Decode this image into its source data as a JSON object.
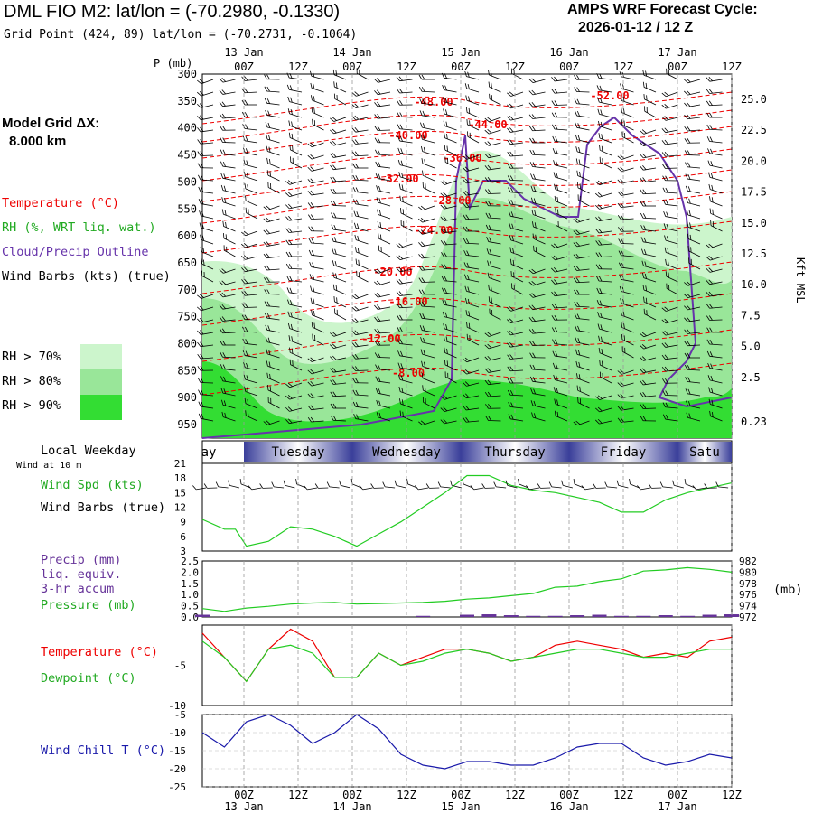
{
  "header": {
    "title": "DML FIO M2:  lat/lon = (-70.2980, -0.1330)",
    "grid_point": "Grid Point (424, 89) lat/lon = (-70.2731, -0.1064)",
    "cycle_line1": "AMPS WRF Forecast Cycle:",
    "cycle_line2": "2026-01-12 / 12  Z"
  },
  "model_grid": {
    "label": "Model Grid ΔX:",
    "value": "8.000 km"
  },
  "time_axis": {
    "tick_labels": [
      "00Z",
      "12Z",
      "00Z",
      "12Z",
      "00Z",
      "12Z",
      "00Z",
      "12Z",
      "00Z",
      "12Z"
    ],
    "date_labels": [
      "13 Jan",
      "14 Jan",
      "15 Jan",
      "16 Jan",
      "17 Jan"
    ]
  },
  "colors": {
    "temperature": "#ee0000",
    "rh": "#22bb22",
    "cloud": "#6633aa",
    "wind": "#000000",
    "rh70": "#ccf5cc",
    "rh80": "#99e699",
    "rh90": "#33dd33",
    "dewpoint": "#22cc22",
    "windchill": "#1a1aaa",
    "precip": "#663399"
  },
  "legend": {
    "temperature": "Temperature (°C)",
    "rh": "RH (%, WRT liq. wat.)",
    "cloud": "Cloud/Precip Outline",
    "wind": "Wind Barbs (kts) (true)",
    "rh70": "RH > 70%",
    "rh80": "RH > 80%",
    "rh90": "RH > 90%"
  },
  "weekday_panel": {
    "label": "Local Weekday",
    "days": [
      "Monday",
      "Tuesday",
      "Wednesday",
      "Thursday",
      "Friday",
      "Saturday"
    ],
    "shown_first": "ay",
    "shown_last": "Satu"
  },
  "wind_panel": {
    "note": "Wind at 10 m",
    "label1": "Wind Spd (kts)",
    "label2": "Wind Barbs (true)"
  },
  "precip_panel": {
    "label1": "Precip (mm)",
    "label2": "liq. equiv.",
    "label3": "3-hr accum",
    "label4": "Pressure (mb)",
    "right_unit": "(mb)"
  },
  "temp_panel": {
    "label1": "Temperature (°C)",
    "label2": "Dewpoint (°C)"
  },
  "windchill_panel": {
    "label": "Wind Chill T (°C)"
  },
  "chart_data": [
    {
      "type": "time-height cross-section",
      "title": "DML FIO M2",
      "ylabel": "P (mb)",
      "y2label": "Kft MSL",
      "x_hours": [
        0,
        144
      ],
      "pressure_ticks": [
        300,
        350,
        400,
        450,
        500,
        550,
        600,
        650,
        700,
        750,
        800,
        850,
        900,
        950
      ],
      "height_ticks": [
        "25.0",
        "22.5",
        "20.0",
        "17.5",
        "15.0",
        "12.5",
        "10.0",
        "7.5",
        "5.0",
        "2.5",
        "0.23"
      ],
      "temperature_contour_labels": [
        "-48.00",
        "-52.00",
        "-44.00",
        "-40.00",
        "-36.00",
        "-32.00",
        "-28.00",
        "-24.00",
        "-20.00",
        "-16.00",
        "-12.00",
        "-8.00"
      ]
    },
    {
      "type": "line",
      "title": "Wind Spd (kts)",
      "ylim": [
        3,
        21
      ],
      "yticks": [
        3,
        6,
        9,
        12,
        15,
        18,
        21
      ],
      "x_hours": [
        0,
        6,
        9,
        12,
        18,
        24,
        30,
        36,
        42,
        48,
        54,
        60,
        66,
        72,
        78,
        84,
        90,
        96,
        102,
        108,
        114,
        120,
        126,
        132,
        138,
        144
      ],
      "values": [
        9.5,
        7.5,
        7.5,
        4,
        5,
        8,
        7.5,
        6,
        4,
        6.5,
        9,
        12,
        15,
        18.5,
        18.5,
        16.5,
        15.5,
        15,
        14,
        13,
        11,
        11,
        13.5,
        15,
        16,
        17
      ]
    },
    {
      "type": "line+bar",
      "title": "Precip / Pressure",
      "precip_ylim": [
        0,
        2.5
      ],
      "precip_yticks": [
        "0.0",
        "0.5",
        "1.0",
        "1.5",
        "2.0",
        "2.5"
      ],
      "pressure_ylim": [
        972,
        982
      ],
      "pressure_yticks": [
        972,
        974,
        976,
        978,
        980,
        982
      ],
      "x_hours": [
        0,
        6,
        12,
        18,
        24,
        30,
        36,
        42,
        48,
        54,
        60,
        66,
        72,
        78,
        84,
        90,
        96,
        102,
        108,
        114,
        120,
        126,
        132,
        138,
        144
      ],
      "pressure": [
        973.5,
        973.0,
        973.6,
        973.9,
        974.3,
        974.5,
        974.6,
        974.3,
        974.4,
        974.5,
        974.6,
        974.8,
        975.2,
        975.4,
        975.8,
        976.2,
        977.3,
        977.5,
        978.3,
        978.8,
        980.2,
        980.4,
        980.8,
        980.5,
        980.0
      ],
      "precip": [
        0.1,
        0,
        0,
        0,
        0,
        0,
        0,
        0,
        0,
        0,
        0.05,
        0,
        0.1,
        0.12,
        0.08,
        0.05,
        0.05,
        0.08,
        0.1,
        0.05,
        0.05,
        0.08,
        0.05,
        0.1,
        0.12
      ]
    },
    {
      "type": "line",
      "title": "Temperature / Dewpoint (°C)",
      "ylim": [
        -10,
        0
      ],
      "yticks": [
        -5,
        -10
      ],
      "x_hours": [
        0,
        6,
        12,
        18,
        24,
        30,
        36,
        42,
        48,
        54,
        60,
        66,
        72,
        78,
        84,
        90,
        96,
        102,
        108,
        114,
        120,
        126,
        132,
        138,
        144
      ],
      "series": [
        {
          "name": "Temperature",
          "values": [
            -1,
            -4,
            -7,
            -3,
            -0.5,
            -2,
            -6.5,
            -6.5,
            -3.5,
            -5,
            -4,
            -3,
            -3,
            -3.5,
            -4.5,
            -4,
            -2.5,
            -2,
            -2.5,
            -3,
            -4,
            -3.5,
            -4,
            -2,
            -1.5
          ]
        },
        {
          "name": "Dewpoint",
          "values": [
            -2,
            -4,
            -7,
            -3,
            -2.5,
            -3.5,
            -6.5,
            -6.5,
            -3.5,
            -5,
            -4.5,
            -3.5,
            -3,
            -3.5,
            -4.5,
            -4,
            -3.5,
            -3,
            -3,
            -3.5,
            -4,
            -4,
            -3.5,
            -3,
            -3
          ]
        }
      ]
    },
    {
      "type": "line",
      "title": "Wind Chill T (°C)",
      "ylim": [
        -25,
        -5
      ],
      "yticks": [
        -5,
        -10,
        -15,
        -20,
        -25
      ],
      "x_hours": [
        0,
        6,
        12,
        18,
        24,
        30,
        36,
        42,
        48,
        54,
        60,
        66,
        72,
        78,
        84,
        90,
        96,
        102,
        108,
        114,
        120,
        126,
        132,
        138,
        144
      ],
      "values": [
        -10,
        -14,
        -7,
        -5,
        -8,
        -13,
        -10,
        -5,
        -9,
        -16,
        -19,
        -20,
        -18,
        -18,
        -19,
        -19,
        -17,
        -14,
        -13,
        -13,
        -17,
        -19,
        -18,
        -16,
        -17
      ]
    }
  ]
}
